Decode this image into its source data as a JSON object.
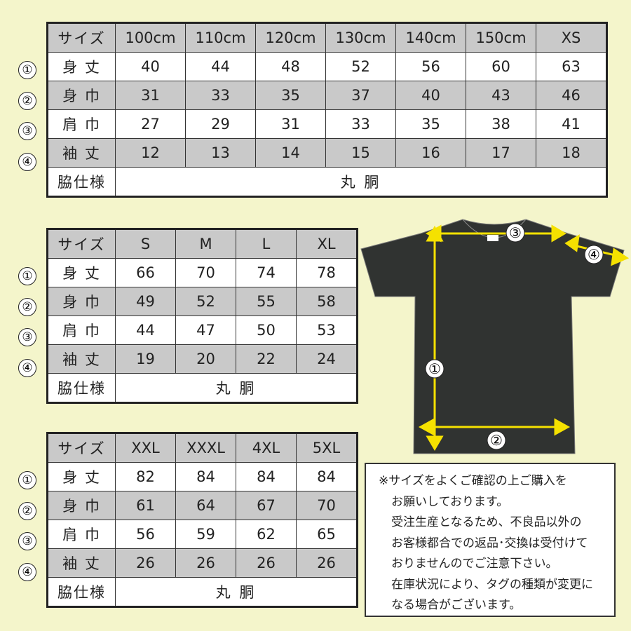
{
  "tables": [
    {
      "header_label": "サイズ",
      "sizes": [
        "100cm",
        "110cm",
        "120cm",
        "130cm",
        "140cm",
        "150cm",
        "XS"
      ],
      "rows": [
        {
          "num": "①",
          "label": "身 丈",
          "values": [
            "40",
            "44",
            "48",
            "52",
            "56",
            "60",
            "63"
          ]
        },
        {
          "num": "②",
          "label": "身 巾",
          "values": [
            "31",
            "33",
            "35",
            "37",
            "40",
            "43",
            "46"
          ]
        },
        {
          "num": "③",
          "label": "肩 巾",
          "values": [
            "27",
            "29",
            "31",
            "33",
            "35",
            "38",
            "41"
          ]
        },
        {
          "num": "④",
          "label": "袖 丈",
          "values": [
            "12",
            "13",
            "14",
            "15",
            "16",
            "17",
            "18"
          ]
        }
      ],
      "side_label": "脇仕様",
      "side_value": "丸 胴"
    },
    {
      "header_label": "サイズ",
      "sizes": [
        "S",
        "M",
        "L",
        "XL"
      ],
      "rows": [
        {
          "num": "①",
          "label": "身 丈",
          "values": [
            "66",
            "70",
            "74",
            "78"
          ]
        },
        {
          "num": "②",
          "label": "身 巾",
          "values": [
            "49",
            "52",
            "55",
            "58"
          ]
        },
        {
          "num": "③",
          "label": "肩 巾",
          "values": [
            "44",
            "47",
            "50",
            "53"
          ]
        },
        {
          "num": "④",
          "label": "袖 丈",
          "values": [
            "19",
            "20",
            "22",
            "24"
          ]
        }
      ],
      "side_label": "脇仕様",
      "side_value": "丸 胴"
    },
    {
      "header_label": "サイズ",
      "sizes": [
        "XXL",
        "XXXL",
        "4XL",
        "5XL"
      ],
      "rows": [
        {
          "num": "①",
          "label": "身 丈",
          "values": [
            "82",
            "84",
            "84",
            "84"
          ]
        },
        {
          "num": "②",
          "label": "身 巾",
          "values": [
            "61",
            "64",
            "67",
            "70"
          ]
        },
        {
          "num": "③",
          "label": "肩 巾",
          "values": [
            "56",
            "59",
            "62",
            "65"
          ]
        },
        {
          "num": "④",
          "label": "袖 丈",
          "values": [
            "26",
            "26",
            "26",
            "26"
          ]
        }
      ],
      "side_label": "脇仕様",
      "side_value": "丸 胴"
    }
  ],
  "diagram": {
    "labels": [
      "①",
      "②",
      "③",
      "④"
    ],
    "shirt_color": "#303331",
    "arrow_color": "#f5e100"
  },
  "note": {
    "lines": [
      "※サイズをよくご確認の上ご購入を",
      "お願いしております。",
      "受注生産となるため、不良品以外の",
      "お客様都合での返品･交換は受付けて",
      "おりませんのでご注意下さい。",
      "在庫状況により、タグの種類が変更に",
      "なる場合がございます。"
    ]
  },
  "colors": {
    "background": "#f4f5cb",
    "gray_row": "#c9c9c9"
  }
}
